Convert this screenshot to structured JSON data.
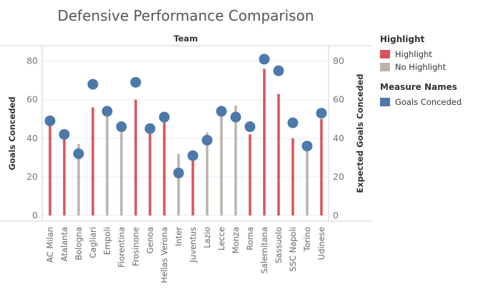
{
  "chart_data": {
    "type": "bar",
    "title": "Defensive Performance Comparison",
    "header_label": "Team",
    "ylabel_left": "Goals Conceded",
    "ylabel_right": "Expected Goals Conceded",
    "ylim": [
      -3,
      88
    ],
    "yticks": [
      0,
      20,
      40,
      60,
      80
    ],
    "grid": true,
    "categories": [
      "AC Milan",
      "Atalanta",
      "Bologna",
      "Cagliari",
      "Empoli",
      "Fiorentina",
      "Frosinone",
      "Genoa",
      "Hellas Verona",
      "Inter",
      "Juventus",
      "Lazio",
      "Lecce",
      "Monza",
      "Roma",
      "Salernitana",
      "Sassuolo",
      "SSC Napoli",
      "Torino",
      "Udinese"
    ],
    "series": [
      {
        "name": "Goals Conceded",
        "mark": "circle",
        "values": [
          49,
          42,
          32,
          68,
          54,
          46,
          69,
          45,
          51,
          22,
          31,
          39,
          54,
          51,
          46,
          81,
          75,
          48,
          36,
          53
        ]
      },
      {
        "name": "Expected Goals Conceded",
        "mark": "bar",
        "values": [
          47,
          41,
          37,
          56,
          55,
          48,
          60,
          43,
          49,
          32,
          30,
          43,
          55,
          57,
          42,
          76,
          63,
          40,
          37,
          50
        ],
        "highlight": [
          true,
          true,
          false,
          true,
          false,
          false,
          true,
          true,
          true,
          false,
          true,
          false,
          false,
          false,
          true,
          true,
          true,
          true,
          false,
          true
        ]
      }
    ],
    "colors": {
      "highlight": "#d95358",
      "no_highlight": "#bbb2ab",
      "goals": "#4d79aa"
    }
  },
  "legend": {
    "highlight_title": "Highlight",
    "highlight_items": [
      {
        "label": "Highlight",
        "color": "#d95358"
      },
      {
        "label": "No Highlight",
        "color": "#bbb2ab"
      }
    ],
    "measure_title": "Measure Names",
    "measure_items": [
      {
        "label": "Goals Conceded",
        "color": "#4d79aa"
      }
    ]
  }
}
